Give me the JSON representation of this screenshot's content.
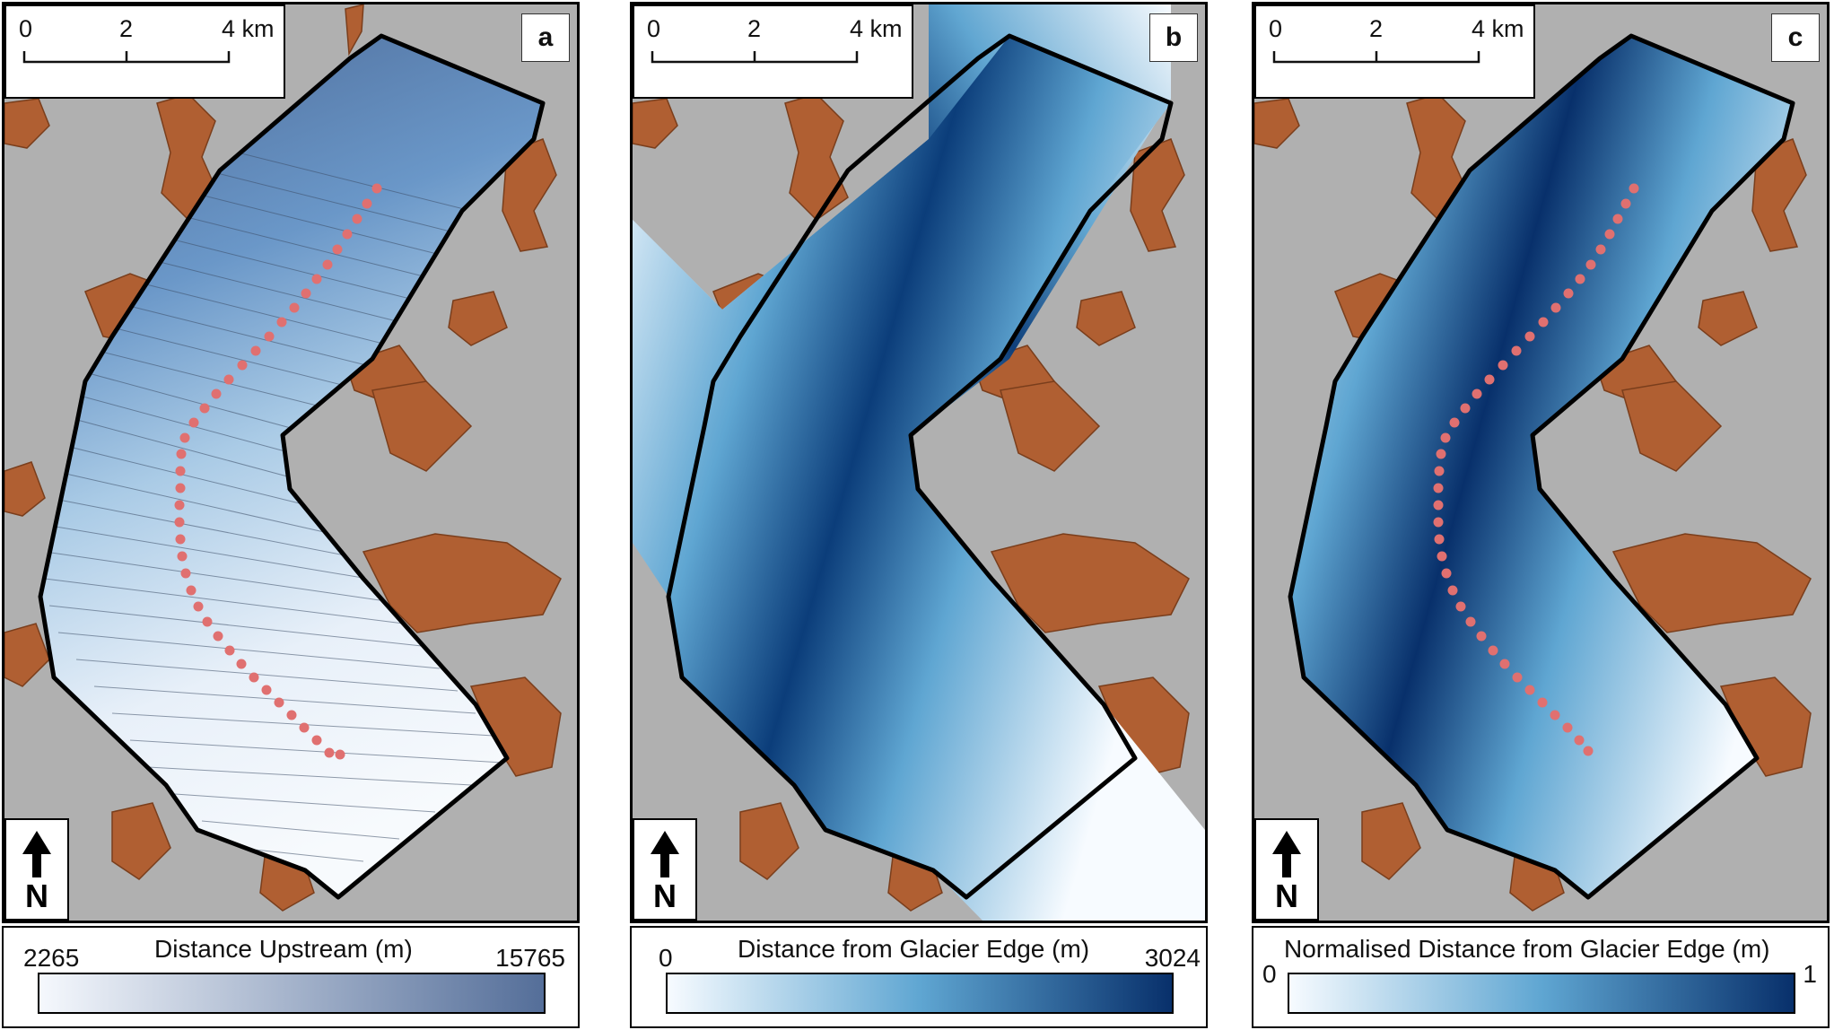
{
  "scale_bar": {
    "ticks": [
      "0",
      "2",
      "4 km"
    ]
  },
  "north_label": "N",
  "panels": {
    "a": {
      "letter": "a",
      "legend_title": "Distance Upstream (m)",
      "legend_min": "2265",
      "legend_max": "15765",
      "colors": {
        "low": "#f5f8fd",
        "high": "#546e99"
      }
    },
    "b": {
      "letter": "b",
      "legend_title": "Distance from Glacier Edge (m)",
      "legend_min": "0",
      "legend_max": "3024",
      "colors": {
        "low": "#f7fbff",
        "mid": "#5fa6d2",
        "high": "#08306b"
      }
    },
    "c": {
      "letter": "c",
      "legend_title": "Normalised Distance from Glacier Edge (m)",
      "legend_min": "0",
      "legend_max": "1",
      "colors": {
        "low": "#f7fbff",
        "mid": "#5fa6d2",
        "high": "#08306b"
      }
    }
  },
  "map_colors": {
    "land": "#b0b0b0",
    "lakes": "#b05f32",
    "outline": "#000000",
    "centreline_points": "#e07070"
  }
}
